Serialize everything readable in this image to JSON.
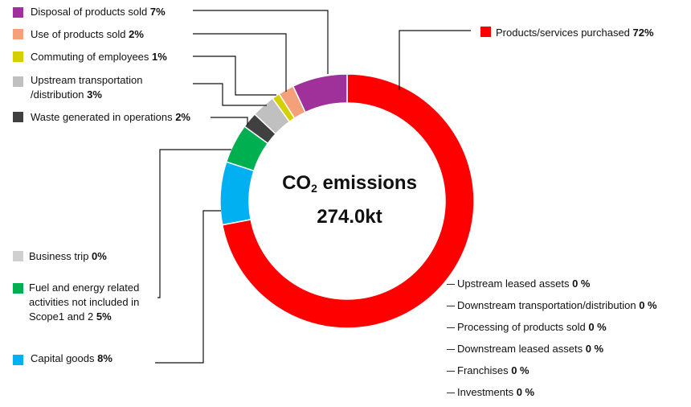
{
  "chart_data": {
    "type": "pie",
    "subtype": "donut",
    "center": {
      "title_main": "CO",
      "title_sub": "2",
      "title_rest": " emissions",
      "value": "274.0kt"
    },
    "slices": [
      {
        "name": "Products/services purchased",
        "value": 72,
        "label_value": "72%",
        "color": "#ff0000"
      },
      {
        "name": "Capital goods",
        "value": 8,
        "label_value": "8%",
        "color": "#00b0f0"
      },
      {
        "name": "Fuel and energy related activities not included in Scope1 and 2",
        "value": 5,
        "label_value": "5%",
        "color": "#00b050"
      },
      {
        "name": "Business trip",
        "value": 0,
        "label_value": "0%",
        "color": "#d0d0d0"
      },
      {
        "name": "Waste generated in operations",
        "value": 2,
        "label_value": "2%",
        "color": "#404040"
      },
      {
        "name": "Upstream transportation /distribution",
        "value": 3,
        "label_value": "3%",
        "color": "#c0c0c0"
      },
      {
        "name": "Commuting of employees",
        "value": 1,
        "label_value": "1%",
        "color": "#d4d000"
      },
      {
        "name": "Use of products sold",
        "value": 2,
        "label_value": "2%",
        "color": "#f4a07a"
      },
      {
        "name": "Disposal of products sold",
        "value": 7,
        "label_value": "7%",
        "color": "#a0309a"
      }
    ],
    "zero_items": [
      {
        "name": "Upstream leased assets",
        "label_value": "0 %"
      },
      {
        "name": "Downstream transportation/distribution",
        "label_value": "0 %"
      },
      {
        "name": "Processing of products sold",
        "label_value": "0 %"
      },
      {
        "name": "Downstream leased assets",
        "label_value": " 0 %"
      },
      {
        "name": "Franchises",
        "label_value": "0 %"
      },
      {
        "name": "Investments",
        "label_value": "0 %"
      }
    ]
  },
  "labels": {
    "disposal": {
      "name": "Disposal of products sold ",
      "value": "7%"
    },
    "use": {
      "name": "Use of products sold ",
      "value": "2%"
    },
    "commuting": {
      "name": "Commuting of employees ",
      "value": "1%"
    },
    "upstream_line1": "Upstream transportation",
    "upstream_line2": "/distribution ",
    "upstream_value": "3%",
    "waste": {
      "name": "Waste generated in operations ",
      "value": "2%"
    },
    "purchased": {
      "name": "Products/services purchased ",
      "value": "72%"
    },
    "business": {
      "name": "Business trip ",
      "value": "0%"
    },
    "fuel_line1": "Fuel and energy related",
    "fuel_line2": "activities not included in",
    "fuel_line3": "Scope1 and 2  ",
    "fuel_value": "5%",
    "capital": {
      "name": "Capital goods ",
      "value": "8%"
    }
  }
}
